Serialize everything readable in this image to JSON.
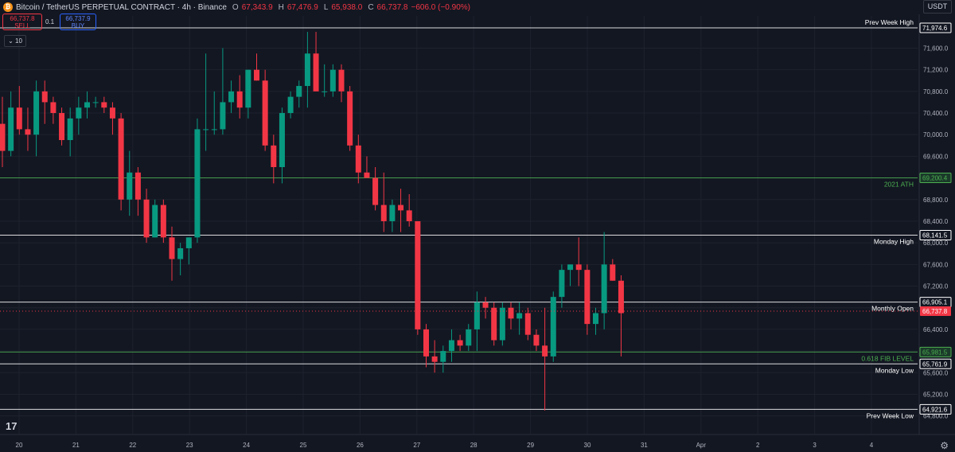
{
  "header": {
    "symbol_icon": "bitcoin-icon",
    "title": "Bitcoin / TetherUS PERPETUAL CONTRACT · 4h · Binance",
    "ohlc": [
      {
        "label": "O",
        "value": "67,343.9"
      },
      {
        "label": "H",
        "value": "67,476.9"
      },
      {
        "label": "L",
        "value": "65,938.0"
      },
      {
        "label": "C",
        "value": "66,737.8"
      },
      {
        "label": "",
        "value": "−606.0 (−0.90%)"
      }
    ]
  },
  "trade": {
    "sell_price": "66,737.8",
    "sell_label": "SELL",
    "buy_price": "66,737.9",
    "buy_label": "BUY",
    "spread": "0.1"
  },
  "indicator_toggle": "10",
  "currency": "USDT",
  "colors": {
    "bg": "#131722",
    "up": "#089981",
    "down": "#f23645",
    "grid": "#1e222d",
    "text": "#b2b5be",
    "level_white": "#ffffff",
    "level_green": "#4caf50"
  },
  "chart_data": {
    "type": "candlestick",
    "price_axis_ticks": [
      64800,
      65200,
      65600,
      66000,
      66400,
      66800,
      67200,
      67600,
      68000,
      68400,
      68800,
      69200,
      69600,
      70000,
      70400,
      70800,
      71200,
      71600
    ],
    "price_axis_tick_labels": [
      "64,800.0",
      "65,200.0",
      "65,600.0",
      "66,000.0",
      "66,400.0",
      "66,800.0",
      "67,200.0",
      "67,600.0",
      "68,000.0",
      "68,400.0",
      "68,800.0",
      "69,200.0",
      "69,600.0",
      "70,000.0",
      "70,400.0",
      "70,800.0",
      "71,200.0",
      "71,600.0"
    ],
    "time_axis_labels": [
      "20",
      "21",
      "22",
      "23",
      "24",
      "25",
      "26",
      "27",
      "28",
      "29",
      "30",
      "31",
      "Apr",
      "2",
      "3",
      "4"
    ],
    "levels": [
      {
        "name": "Prev Week High",
        "value": 71974.6,
        "label": "71,974.6",
        "color": "white"
      },
      {
        "name": "2021 ATH",
        "value": 69200.4,
        "label": "69,200.4",
        "color": "green"
      },
      {
        "name": "Monday High",
        "value": 68141.5,
        "label": "68,141.5",
        "color": "white"
      },
      {
        "name": "Monthly Open",
        "value": 66905.1,
        "label": "66,905.1",
        "color": "white"
      },
      {
        "name": "0.618 FIB LEVEL",
        "value": 65981.5,
        "label": "65,981.5",
        "color": "green"
      },
      {
        "name": "Monday Low",
        "value": 65761.9,
        "label": "65,761.9",
        "color": "white"
      },
      {
        "name": "Prev Week Low",
        "value": 64921.6,
        "label": "64,921.6",
        "color": "white"
      }
    ],
    "last_price": {
      "value": 66737.8,
      "label": "66,737.8"
    },
    "candles": [
      [
        70200,
        70700,
        69400,
        69700
      ],
      [
        69700,
        70800,
        69600,
        70500
      ],
      [
        70500,
        70900,
        70000,
        70100
      ],
      [
        70100,
        70500,
        69700,
        70000
      ],
      [
        70000,
        71000,
        69600,
        70800
      ],
      [
        70800,
        71000,
        70200,
        70600
      ],
      [
        70600,
        70700,
        70200,
        70400
      ],
      [
        70400,
        70500,
        69800,
        69900
      ],
      [
        69900,
        70500,
        69600,
        70300
      ],
      [
        70300,
        70700,
        70000,
        70500
      ],
      [
        70500,
        70800,
        70300,
        70600
      ],
      [
        70600,
        70700,
        70500,
        70600
      ],
      [
        70600,
        70700,
        70400,
        70500
      ],
      [
        70500,
        70600,
        70000,
        70300
      ],
      [
        70300,
        70400,
        68600,
        68800
      ],
      [
        68800,
        69700,
        68500,
        69300
      ],
      [
        69300,
        69400,
        68500,
        68800
      ],
      [
        68800,
        69000,
        68000,
        68100
      ],
      [
        68100,
        68800,
        68100,
        68700
      ],
      [
        68700,
        68800,
        68000,
        68100
      ],
      [
        68100,
        68300,
        67300,
        67700
      ],
      [
        67700,
        68000,
        67400,
        67900
      ],
      [
        67900,
        68100,
        67600,
        68100
      ],
      [
        68100,
        70300,
        68000,
        70100
      ],
      [
        70100,
        71500,
        69700,
        70100
      ],
      [
        70100,
        70800,
        70000,
        70100
      ],
      [
        70100,
        71600,
        70000,
        70600
      ],
      [
        70600,
        71000,
        70400,
        70800
      ],
      [
        70800,
        71100,
        70300,
        70500
      ],
      [
        70500,
        71200,
        70300,
        71200
      ],
      [
        71200,
        71500,
        71000,
        71000
      ],
      [
        71000,
        71200,
        69700,
        69800
      ],
      [
        69800,
        70000,
        69100,
        69400
      ],
      [
        69400,
        70500,
        69100,
        70400
      ],
      [
        70400,
        70800,
        70300,
        70700
      ],
      [
        70700,
        71000,
        70500,
        70900
      ],
      [
        70900,
        71900,
        70500,
        71500
      ],
      [
        71500,
        71900,
        70800,
        70800
      ],
      [
        70800,
        71300,
        70700,
        70800
      ],
      [
        70800,
        71300,
        70700,
        71200
      ],
      [
        71200,
        71300,
        70600,
        70800
      ],
      [
        70800,
        70900,
        69700,
        69800
      ],
      [
        69800,
        70000,
        69100,
        69300
      ],
      [
        69300,
        69600,
        69200,
        69200
      ],
      [
        69200,
        69400,
        68600,
        68700
      ],
      [
        68700,
        69300,
        68200,
        68400
      ],
      [
        68400,
        68800,
        68200,
        68700
      ],
      [
        68700,
        69000,
        68200,
        68600
      ],
      [
        68600,
        68900,
        68300,
        68400
      ],
      [
        68400,
        68400,
        66300,
        66400
      ],
      [
        66400,
        66500,
        65700,
        65900
      ],
      [
        65900,
        66200,
        65600,
        65800
      ],
      [
        65800,
        66100,
        65600,
        66000
      ],
      [
        66000,
        66400,
        65800,
        66200
      ],
      [
        66200,
        66300,
        66000,
        66100
      ],
      [
        66100,
        66500,
        66000,
        66400
      ],
      [
        66400,
        67100,
        66000,
        66900
      ],
      [
        66900,
        67000,
        66600,
        66800
      ],
      [
        66800,
        66900,
        66100,
        66200
      ],
      [
        66200,
        66900,
        66100,
        66800
      ],
      [
        66800,
        66900,
        66400,
        66600
      ],
      [
        66600,
        66900,
        66300,
        66700
      ],
      [
        66700,
        66800,
        66200,
        66300
      ],
      [
        66300,
        66400,
        66000,
        66100
      ],
      [
        66100,
        66800,
        64900,
        65900
      ],
      [
        65900,
        67100,
        65800,
        67000
      ],
      [
        67000,
        67600,
        66800,
        67500
      ],
      [
        67500,
        67600,
        67200,
        67600
      ],
      [
        67600,
        68100,
        67200,
        67500
      ],
      [
        67500,
        67600,
        66300,
        66500
      ],
      [
        66500,
        66800,
        66300,
        66700
      ],
      [
        66700,
        68200,
        66400,
        67600
      ],
      [
        67600,
        67700,
        67300,
        67300
      ],
      [
        67300,
        67400,
        65900,
        66700
      ]
    ]
  }
}
